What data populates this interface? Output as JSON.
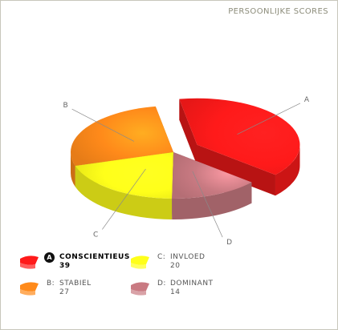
{
  "title": "PERSOONLIJKE SCORES",
  "chart_data": {
    "type": "pie",
    "style": "3d-exploded",
    "slices": [
      {
        "key": "A",
        "label": "A",
        "name": "CONSCIENTIEUS",
        "value": 39,
        "color": "#ff1a1a",
        "active": true
      },
      {
        "key": "D",
        "label": "D",
        "name": "DOMINANT",
        "value": 14,
        "color": "#c97a82",
        "active": false
      },
      {
        "key": "C",
        "label": "C",
        "name": "INVLOED",
        "value": 20,
        "color": "#ffff1a",
        "active": false
      },
      {
        "key": "B",
        "label": "B",
        "name": "STABIEL",
        "value": 27,
        "color": "#ff8a1a",
        "active": false
      }
    ]
  },
  "legend": [
    {
      "key": "A",
      "letter": "A",
      "prefix": "A:",
      "name": "CONSCIENTIEUS",
      "value": "39",
      "color": "#ff1a1a",
      "active": true
    },
    {
      "key": "C",
      "letter": "C",
      "prefix": "C:",
      "name": "INVLOED",
      "value": "20",
      "color": "#ffff1a",
      "active": false
    },
    {
      "key": "B",
      "letter": "B",
      "prefix": "B:",
      "name": "STABIEL",
      "value": "27",
      "color": "#ff8a1a",
      "active": false
    },
    {
      "key": "D",
      "letter": "D",
      "prefix": "D:",
      "name": "DOMINANT",
      "value": "14",
      "color": "#c97a82",
      "active": false
    }
  ]
}
